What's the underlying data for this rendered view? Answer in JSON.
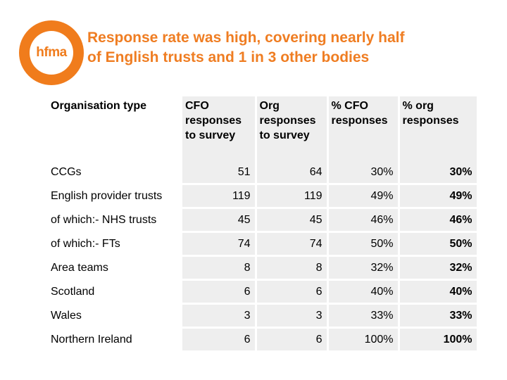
{
  "logo": {
    "text": "hfma"
  },
  "title": {
    "line1": "Response rate was high, covering nearly half",
    "line2": "of English trusts and 1 in 3 other bodies"
  },
  "table": {
    "headers": [
      "Organisation type",
      "CFO responses to survey",
      "Org responses to survey",
      "% CFO responses",
      "% org responses"
    ],
    "rows": [
      [
        "CCGs",
        "51",
        "64",
        "30%",
        "30%"
      ],
      [
        "English provider trusts",
        "119",
        "119",
        "49%",
        "49%"
      ],
      [
        "of which:- NHS trusts",
        "45",
        "45",
        "46%",
        "46%"
      ],
      [
        "of which:- FTs",
        "74",
        "74",
        "50%",
        "50%"
      ],
      [
        "Area teams",
        "8",
        "8",
        "32%",
        "32%"
      ],
      [
        "Scotland",
        "6",
        "6",
        "40%",
        "40%"
      ],
      [
        "Wales",
        "3",
        "3",
        "33%",
        "33%"
      ],
      [
        "Northern Ireland",
        "6",
        "6",
        "100%",
        "100%"
      ]
    ]
  },
  "colors": {
    "accent": "#ef7d22",
    "cell_bg": "#eeeeee"
  }
}
